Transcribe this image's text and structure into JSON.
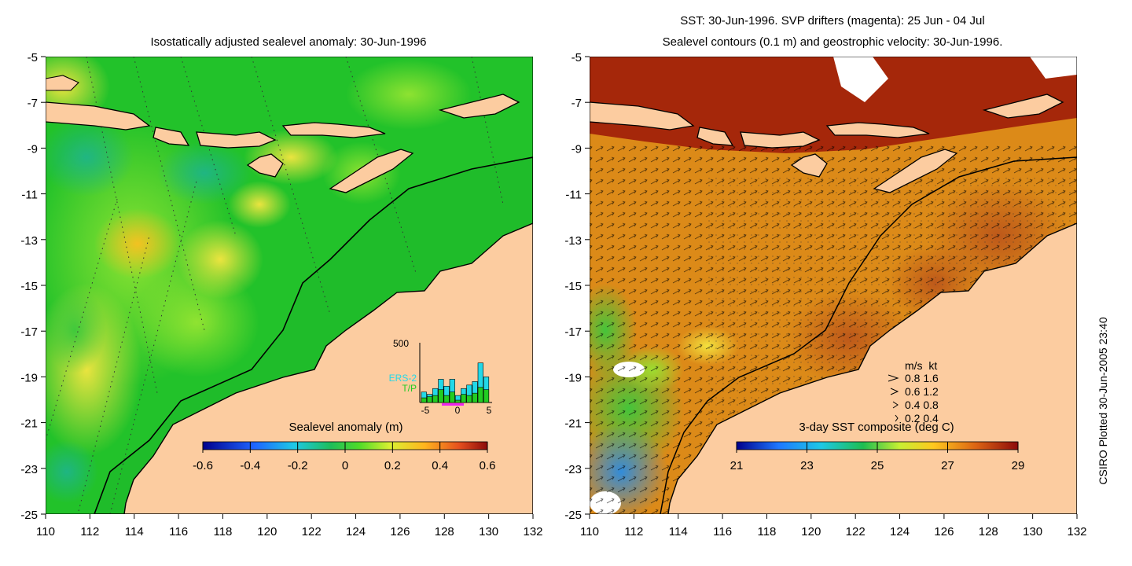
{
  "left_panel": {
    "title": "Isostatically adjusted sealevel anomaly: 30-Jun-1996",
    "colorbar_label": "Sealevel anomaly (m)",
    "colorbar_ticks": [
      "-0.6",
      "-0.4",
      "-0.2",
      "0",
      "0.2",
      "0.4",
      "0.6"
    ],
    "inset": {
      "ymax_label": "500",
      "series_labels": [
        "ERS-2",
        "T/P"
      ],
      "series_colors": [
        "#22d8e8",
        "#22cc22"
      ],
      "x_ticks": [
        "-5",
        "0",
        "5"
      ],
      "ers2_counts": [
        90,
        70,
        120,
        200,
        140,
        200,
        60,
        120,
        150,
        180,
        340,
        220
      ],
      "tp_counts": [
        40,
        50,
        60,
        110,
        60,
        90,
        20,
        70,
        60,
        80,
        130,
        110
      ]
    }
  },
  "right_panel": {
    "title_line1": "SST: 30-Jun-1996. SVP drifters (magenta): 25 Jun - 04 Jul",
    "title_line2": "Sealevel contours (0.1 m) and geostrophic velocity: 30-Jun-1996.",
    "colorbar_label": "3-day SST composite (deg C)",
    "colorbar_ticks": [
      "21",
      "23",
      "25",
      "27",
      "29"
    ],
    "speed_legend": {
      "header": "m/s  kt",
      "rows": [
        "0.8  1.6",
        "0.6  1.2",
        "0.4  0.8",
        "0.2  0.4"
      ]
    }
  },
  "axes": {
    "lat_ticks": [
      "-5",
      "-7",
      "-9",
      "-11",
      "-13",
      "-15",
      "-17",
      "-19",
      "-21",
      "-23",
      "-25"
    ],
    "lon_ticks": [
      "110",
      "112",
      "114",
      "116",
      "118",
      "120",
      "122",
      "124",
      "126",
      "128",
      "130",
      "132"
    ]
  },
  "credit": "CSIRO Plotted 30-Jun-2005 23:40",
  "colors": {
    "land": "#fccca0",
    "sla_field": "#22c22a",
    "sst_field": "#dc8a18",
    "coast": "#000000"
  }
}
